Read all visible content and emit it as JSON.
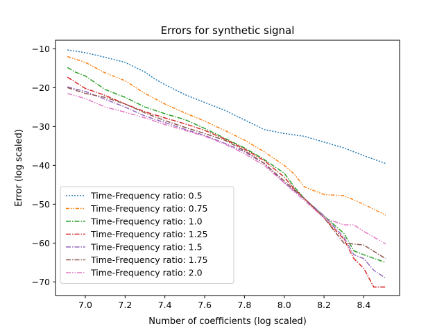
{
  "chart_data": {
    "type": "line",
    "title": "Errors for synthetic signal",
    "xlabel": "Number of coefficients (log scaled)",
    "ylabel": "Error (log scaled)",
    "xlim": [
      6.85,
      8.58
    ],
    "ylim": [
      -73.5,
      -7.8
    ],
    "xticks": [
      7.0,
      7.2,
      7.4,
      7.6,
      7.8,
      8.0,
      8.2,
      8.4
    ],
    "xtick_labels": [
      "7.0",
      "7.2",
      "7.4",
      "7.6",
      "7.8",
      "8.0",
      "8.2",
      "8.4"
    ],
    "yticks": [
      -10,
      -20,
      -30,
      -40,
      -50,
      -60,
      -70
    ],
    "ytick_labels": [
      "−10",
      "−20",
      "−30",
      "−40",
      "−50",
      "−60",
      "−70"
    ],
    "grid": false,
    "legend_position": "lower-left",
    "series": [
      {
        "name": "Time-Frequency ratio: 0.5",
        "color": "#1f77b4",
        "dash": "2,2",
        "x": [
          6.91,
          7.0,
          7.1,
          7.2,
          7.3,
          7.35,
          7.4,
          7.5,
          7.6,
          7.7,
          7.8,
          7.9,
          8.0,
          8.1,
          8.2,
          8.3,
          8.4,
          8.51
        ],
        "y": [
          -10.3,
          -11.0,
          -12.2,
          -13.5,
          -16.0,
          -17.8,
          -19.2,
          -21.8,
          -23.8,
          -25.8,
          -28.3,
          -30.8,
          -31.8,
          -32.5,
          -34.0,
          -35.5,
          -37.5,
          -39.5
        ]
      },
      {
        "name": "Time-Frequency ratio: 0.75",
        "color": "#ff7f0e",
        "dash": "5,2,1.5,2,1.5,2",
        "x": [
          6.91,
          7.0,
          7.1,
          7.2,
          7.3,
          7.4,
          7.5,
          7.6,
          7.7,
          7.8,
          7.9,
          8.0,
          8.05,
          8.1,
          8.15,
          8.2,
          8.3,
          8.4,
          8.51
        ],
        "y": [
          -12.0,
          -13.5,
          -16.2,
          -18.2,
          -21.5,
          -24.2,
          -26.5,
          -28.6,
          -31.0,
          -33.5,
          -36.5,
          -40.0,
          -42.2,
          -45.5,
          -46.5,
          -47.5,
          -47.8,
          -50.0,
          -52.8
        ]
      },
      {
        "name": "Time-Frequency ratio: 1.0",
        "color": "#2ca02c",
        "dash": "7,2,1.5,2",
        "x": [
          6.91,
          6.95,
          7.0,
          7.1,
          7.2,
          7.3,
          7.4,
          7.5,
          7.6,
          7.7,
          7.8,
          7.9,
          8.0,
          8.05,
          8.1,
          8.2,
          8.3,
          8.35,
          8.4,
          8.51
        ],
        "y": [
          -14.8,
          -16.0,
          -17.0,
          -20.5,
          -22.5,
          -25.0,
          -26.7,
          -28.2,
          -30.5,
          -33.0,
          -35.5,
          -38.5,
          -42.0,
          -45.5,
          -48.5,
          -53.0,
          -57.5,
          -62.0,
          -63.0,
          -65.0
        ]
      },
      {
        "name": "Time-Frequency ratio: 1.25",
        "color": "#d62728",
        "dash": "7,2,1.5,2",
        "x": [
          6.91,
          7.0,
          7.1,
          7.2,
          7.3,
          7.4,
          7.5,
          7.6,
          7.7,
          7.8,
          7.9,
          8.0,
          8.05,
          8.1,
          8.2,
          8.3,
          8.35,
          8.4,
          8.45,
          8.51
        ],
        "y": [
          -17.3,
          -20.2,
          -22.0,
          -24.2,
          -26.2,
          -27.8,
          -29.3,
          -31.0,
          -33.2,
          -35.8,
          -38.8,
          -43.0,
          -46.0,
          -48.5,
          -53.5,
          -59.0,
          -64.0,
          -66.5,
          -71.3,
          -71.3
        ]
      },
      {
        "name": "Time-Frequency ratio: 1.5",
        "color": "#9467bd",
        "dash": "7,2,1.5,2",
        "x": [
          6.91,
          7.0,
          7.1,
          7.2,
          7.3,
          7.4,
          7.5,
          7.6,
          7.7,
          7.8,
          7.9,
          8.0,
          8.1,
          8.2,
          8.3,
          8.35,
          8.4,
          8.45,
          8.51
        ],
        "y": [
          -19.8,
          -21.0,
          -23.0,
          -25.0,
          -27.3,
          -29.0,
          -30.7,
          -32.3,
          -34.3,
          -36.5,
          -39.5,
          -44.5,
          -48.5,
          -53.0,
          -58.5,
          -63.0,
          -64.0,
          -67.0,
          -69.0
        ]
      },
      {
        "name": "Time-Frequency ratio: 1.75",
        "color": "#8c564b",
        "dash": "7,2,1.5,2",
        "x": [
          6.91,
          7.0,
          7.1,
          7.2,
          7.3,
          7.4,
          7.5,
          7.6,
          7.7,
          7.8,
          7.9,
          8.0,
          8.1,
          8.2,
          8.3,
          8.4,
          8.51
        ],
        "y": [
          -20.0,
          -21.5,
          -22.5,
          -24.2,
          -26.5,
          -28.5,
          -30.2,
          -31.8,
          -33.5,
          -36.2,
          -39.5,
          -44.0,
          -48.5,
          -53.5,
          -60.0,
          -60.5,
          -64.0
        ]
      },
      {
        "name": "Time-Frequency ratio: 2.0",
        "color": "#e377c2",
        "dash": "7,2,1.5,2,1.5,2",
        "x": [
          6.91,
          7.0,
          7.1,
          7.2,
          7.3,
          7.4,
          7.5,
          7.6,
          7.7,
          7.8,
          7.9,
          8.0,
          8.1,
          8.2,
          8.3,
          8.35,
          8.4,
          8.51
        ],
        "y": [
          -21.5,
          -22.8,
          -25.0,
          -26.3,
          -27.8,
          -29.5,
          -31.0,
          -32.5,
          -34.5,
          -37.0,
          -40.0,
          -44.5,
          -49.0,
          -53.5,
          -55.3,
          -55.3,
          -57.0,
          -60.2
        ]
      }
    ]
  }
}
